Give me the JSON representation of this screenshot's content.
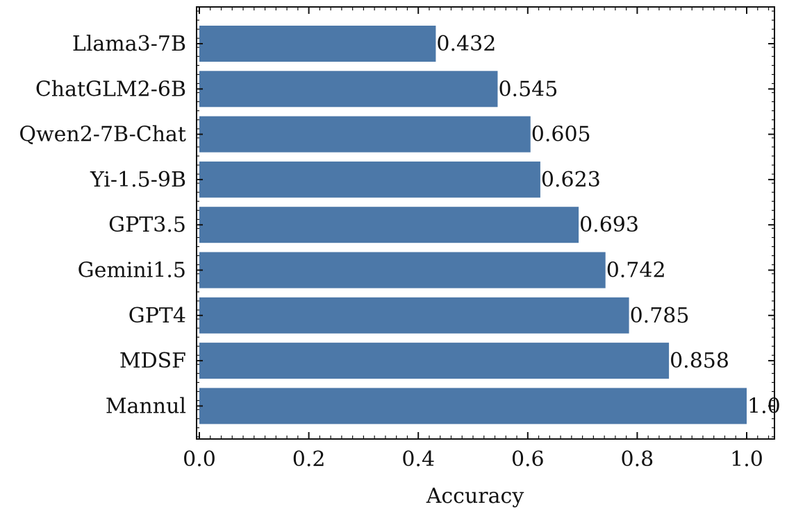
{
  "chart_data": {
    "type": "bar",
    "orientation": "horizontal",
    "categories": [
      "Llama3-7B",
      "ChatGLM2-6B",
      "Qwen2-7B-Chat",
      "Yi-1.5-9B",
      "GPT3.5",
      "Gemini1.5",
      "GPT4",
      "MDSF",
      "Mannul"
    ],
    "values": [
      0.432,
      0.545,
      0.605,
      0.623,
      0.693,
      0.742,
      0.785,
      0.858,
      1.0
    ],
    "value_labels": [
      "0.432",
      "0.545",
      "0.605",
      "0.623",
      "0.693",
      "0.742",
      "0.785",
      "0.858",
      "1.0"
    ],
    "xlabel": "Accuracy",
    "ylabel": "",
    "xlim": [
      0.0,
      1.05
    ],
    "xticks": [
      0.0,
      0.2,
      0.4,
      0.6,
      0.8,
      1.0
    ],
    "xtick_labels": [
      "0.0",
      "0.2",
      "0.4",
      "0.6",
      "0.8",
      "1.0"
    ],
    "grid": false,
    "legend": "none",
    "bar_color": "#4c78a8"
  }
}
